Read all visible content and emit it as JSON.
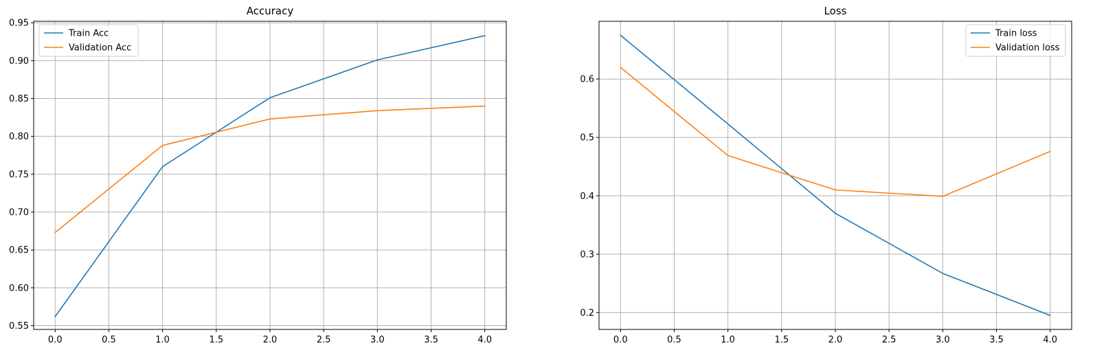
{
  "chart_data": [
    {
      "type": "line",
      "title": "Accuracy",
      "xlabel": "",
      "ylabel": "",
      "x": [
        0,
        1,
        2,
        3,
        4
      ],
      "xlim": [
        -0.2,
        4.2
      ],
      "ylim": [
        0.545,
        0.952
      ],
      "xticks": [
        0.0,
        0.5,
        1.0,
        1.5,
        2.0,
        2.5,
        3.0,
        3.5,
        4.0
      ],
      "xtick_labels": [
        "0.0",
        "0.5",
        "1.0",
        "1.5",
        "2.0",
        "2.5",
        "3.0",
        "3.5",
        "4.0"
      ],
      "yticks": [
        0.55,
        0.6,
        0.65,
        0.7,
        0.75,
        0.8,
        0.85,
        0.9,
        0.95
      ],
      "ytick_labels": [
        "0.55",
        "0.60",
        "0.65",
        "0.70",
        "0.75",
        "0.80",
        "0.85",
        "0.90",
        "0.95"
      ],
      "grid": true,
      "legend_position": "top-left",
      "series": [
        {
          "name": "Train Acc",
          "color": "#1f77b4",
          "values": [
            0.562,
            0.76,
            0.851,
            0.901,
            0.933
          ]
        },
        {
          "name": "Validation Acc",
          "color": "#ff7f0e",
          "values": [
            0.673,
            0.788,
            0.823,
            0.834,
            0.84
          ]
        }
      ]
    },
    {
      "type": "line",
      "title": "Loss",
      "xlabel": "",
      "ylabel": "",
      "x": [
        0,
        1,
        2,
        3,
        4
      ],
      "xlim": [
        -0.2,
        4.2
      ],
      "ylim": [
        0.171,
        0.699
      ],
      "xticks": [
        0.0,
        0.5,
        1.0,
        1.5,
        2.0,
        2.5,
        3.0,
        3.5,
        4.0
      ],
      "xtick_labels": [
        "0.0",
        "0.5",
        "1.0",
        "1.5",
        "2.0",
        "2.5",
        "3.0",
        "3.5",
        "4.0"
      ],
      "yticks": [
        0.2,
        0.3,
        0.4,
        0.5,
        0.6
      ],
      "ytick_labels": [
        "0.2",
        "0.3",
        "0.4",
        "0.5",
        "0.6"
      ],
      "grid": true,
      "legend_position": "top-right",
      "series": [
        {
          "name": "Train loss",
          "color": "#1f77b4",
          "values": [
            0.675,
            0.523,
            0.37,
            0.267,
            0.195
          ]
        },
        {
          "name": "Validation loss",
          "color": "#ff7f0e",
          "values": [
            0.62,
            0.469,
            0.41,
            0.399,
            0.476
          ]
        }
      ]
    }
  ]
}
